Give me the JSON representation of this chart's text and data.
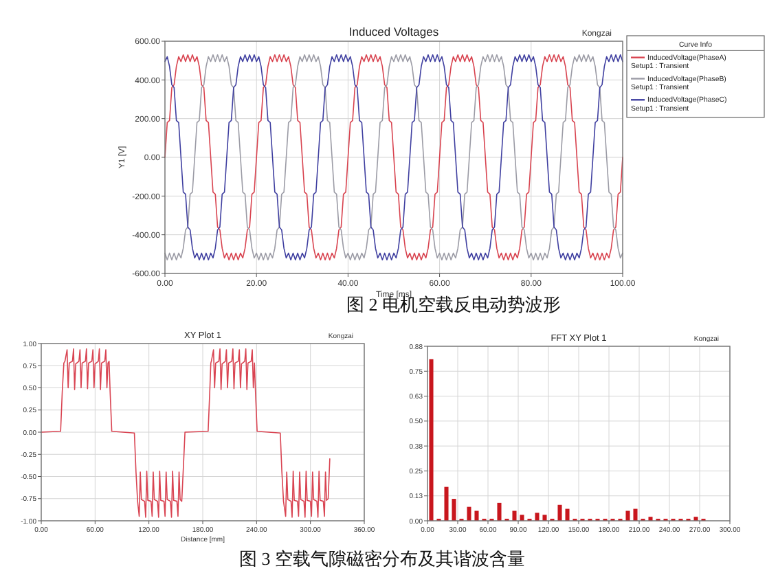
{
  "chart_data": [
    {
      "type": "line",
      "title": "Induced Voltages",
      "xlabel": "Time [ms]",
      "ylabel": "Y1 [V]",
      "legend_title": "Curve Info",
      "legend": "top right",
      "grid": true,
      "annotations": [
        "Kongzai",
        "图 2 电机空载反电动势波形"
      ],
      "xlim": [
        0,
        100
      ],
      "xticks": [
        {
          "value": 0,
          "label": "0.00"
        },
        {
          "value": 20,
          "label": "20.00"
        },
        {
          "value": 40,
          "label": "40.00"
        },
        {
          "value": 60,
          "label": "60.00"
        },
        {
          "value": 80,
          "label": "80.00"
        },
        {
          "value": 100,
          "label": "100.00"
        }
      ],
      "ylim": [
        -600,
        600
      ],
      "yticks": [
        {
          "value": -600,
          "label": "-600.00"
        },
        {
          "value": -400,
          "label": "-400.00"
        },
        {
          "value": -200,
          "label": "-200.00"
        },
        {
          "value": 0,
          "label": "0.00"
        },
        {
          "value": 200,
          "label": "200.00"
        },
        {
          "value": 400,
          "label": "400.00"
        },
        {
          "value": 600,
          "label": "600.00"
        }
      ],
      "x": [
        0,
        0.5,
        1,
        1.5,
        2,
        2.5,
        3,
        3.5,
        4,
        4.5,
        5,
        5.5,
        6,
        6.5,
        7,
        7.5,
        8,
        8.5,
        9,
        9.5,
        10,
        10.5,
        11,
        11.5,
        12,
        12.5,
        13,
        13.5,
        14,
        14.5,
        15,
        15.5,
        16,
        16.5,
        17,
        17.5,
        18,
        18.5,
        19,
        19.5,
        20,
        20.5,
        21,
        21.5,
        22,
        22.5,
        23,
        23.5,
        24,
        24.5,
        25,
        25.5,
        26,
        26.5,
        27,
        27.5,
        28,
        28.5,
        29,
        29.5,
        30,
        30.5,
        31,
        31.5,
        32,
        32.5,
        33,
        33.5,
        34,
        34.5,
        35,
        35.5,
        36,
        36.5,
        37,
        37.5,
        38,
        38.5,
        39,
        39.5,
        40,
        40.5,
        41,
        41.5,
        42,
        42.5,
        43,
        43.5,
        44,
        44.5,
        45,
        45.5,
        46,
        46.5,
        47,
        47.5,
        48,
        48.5,
        49,
        49.5,
        50,
        50.5,
        51,
        51.5,
        52,
        52.5,
        53,
        53.5,
        54,
        54.5,
        55,
        55.5,
        56,
        56.5,
        57,
        57.5,
        58,
        58.5,
        59,
        59.5,
        60,
        60.5,
        61,
        61.5,
        62,
        62.5,
        63,
        63.5,
        64,
        64.5,
        65,
        65.5,
        66,
        66.5,
        67,
        67.5,
        68,
        68.5,
        69,
        69.5,
        70,
        70.5,
        71,
        71.5,
        72,
        72.5,
        73,
        73.5,
        74,
        74.5,
        75,
        75.5,
        76,
        76.5,
        77,
        77.5,
        78,
        78.5,
        79,
        79.5,
        80,
        80.5,
        81,
        81.5,
        82,
        82.5,
        83,
        83.5,
        84,
        84.5,
        85,
        85.5,
        86,
        86.5,
        87,
        87.5,
        88,
        88.5,
        89,
        89.5,
        90,
        90.5,
        91,
        91.5,
        92,
        92.5,
        93,
        93.5,
        94,
        94.5,
        95,
        95.5,
        96,
        96.5,
        97,
        97.5,
        98,
        98.5,
        99,
        99.5,
        100
      ],
      "series": [
        {
          "name": "InducedVoltage(PhaseA) Setup1 : Transient",
          "color": "#d8434f",
          "values": [
            0,
            180,
            190,
            360,
            375,
            470,
            520,
            495,
            530,
            495,
            530,
            495,
            530,
            495,
            520,
            470,
            375,
            360,
            190,
            180,
            0,
            -180,
            -190,
            -360,
            -375,
            -470,
            -520,
            -495,
            -530,
            -495,
            -530,
            -495,
            -530,
            -495,
            -520,
            -470,
            -375,
            -360,
            -190,
            -180,
            0,
            180,
            190,
            360,
            375,
            470,
            520,
            495,
            530,
            495,
            530,
            495,
            530,
            495,
            520,
            470,
            375,
            360,
            190,
            180,
            0,
            -180,
            -190,
            -360,
            -375,
            -470,
            -520,
            -495,
            -530,
            -495,
            -530,
            -495,
            -530,
            -495,
            -520,
            -470,
            -375,
            -360,
            -190,
            -180,
            0,
            180,
            190,
            360,
            375,
            470,
            520,
            495,
            530,
            495,
            530,
            495,
            530,
            495,
            520,
            470,
            375,
            360,
            190,
            180,
            0,
            -180,
            -190,
            -360,
            -375,
            -470,
            -520,
            -495,
            -530,
            -495,
            -530,
            -495,
            -530,
            -495,
            -520,
            -470,
            -375,
            -360,
            -190,
            -180,
            0,
            180,
            190,
            360,
            375,
            470,
            520,
            495,
            530,
            495,
            530,
            495,
            530,
            495,
            520,
            470,
            375,
            360,
            190,
            180,
            0,
            -180,
            -190,
            -360,
            -375,
            -470,
            -520,
            -495,
            -530,
            -495,
            -530,
            -495,
            -530,
            -495,
            -520,
            -470,
            -375,
            -360,
            -190,
            -180,
            0,
            180,
            190,
            360,
            375,
            470,
            520,
            495,
            530,
            495,
            530,
            495,
            530,
            495,
            520,
            470,
            375,
            360,
            190,
            180,
            0,
            -180,
            -190,
            -360,
            -375,
            -470,
            -520,
            -495,
            -530,
            -495,
            -530,
            -495,
            -530,
            -495,
            -520,
            -470,
            -375,
            -360,
            -190,
            -180,
            0
          ]
        },
        {
          "name": "InducedVoltage(PhaseB) Setup1 : Transient",
          "color": "#9b9ba5",
          "values": [
            -495,
            -530,
            -495,
            -530,
            -495,
            -530,
            -495,
            -520,
            -470,
            -375,
            -360,
            -190,
            -180,
            0,
            180,
            190,
            360,
            375,
            470,
            520,
            495,
            530,
            495,
            530,
            495,
            530,
            495,
            520,
            470,
            375,
            360,
            190,
            180,
            0,
            -180,
            -190,
            -360,
            -375,
            -470,
            -520,
            -495,
            -530,
            -495,
            -530,
            -495,
            -530,
            -495,
            -520,
            -470,
            -375,
            -360,
            -190,
            -180,
            0,
            180,
            190,
            360,
            375,
            470,
            520,
            495,
            530,
            495,
            530,
            495,
            530,
            495,
            520,
            470,
            375,
            360,
            190,
            180,
            0,
            -180,
            -190,
            -360,
            -375,
            -470,
            -520,
            -495,
            -530,
            -495,
            -530,
            -495,
            -530,
            -495,
            -520,
            -470,
            -375,
            -360,
            -190,
            -180,
            0,
            180,
            190,
            360,
            375,
            470,
            520,
            495,
            530,
            495,
            530,
            495,
            530,
            495,
            520,
            470,
            375,
            360,
            190,
            180,
            0,
            -180,
            -190,
            -360,
            -375,
            -470,
            -520,
            -495,
            -530,
            -495,
            -530,
            -495,
            -530,
            -495,
            -520,
            -470,
            -375,
            -360,
            -190,
            -180,
            0,
            180,
            190,
            360,
            375,
            470,
            520,
            495,
            530,
            495,
            530,
            495,
            530,
            495,
            520,
            470,
            375,
            360,
            190,
            180,
            0,
            -180,
            -190,
            -360,
            -375,
            -470,
            -520,
            -495,
            -530,
            -495,
            -530,
            -495,
            -530,
            -495,
            -520,
            -470,
            -375,
            -360,
            -190,
            -180,
            0,
            180,
            190,
            360,
            375,
            470,
            520,
            495,
            530,
            495,
            530,
            495,
            530,
            495,
            520,
            470,
            375,
            360,
            190,
            180,
            0,
            -180,
            -190,
            -360,
            -375,
            -470,
            -520,
            -495
          ]
        },
        {
          "name": "InducedVoltage(PhaseC) Setup1 : Transient",
          "color": "#3f3fa0",
          "values": [
            495,
            520,
            470,
            375,
            360,
            190,
            180,
            0,
            -180,
            -190,
            -360,
            -375,
            -470,
            -520,
            -495,
            -530,
            -495,
            -530,
            -495,
            -530,
            -495,
            -520,
            -470,
            -375,
            -360,
            -190,
            -180,
            0,
            180,
            190,
            360,
            375,
            470,
            520,
            495,
            530,
            495,
            530,
            495,
            530,
            495,
            520,
            470,
            375,
            360,
            190,
            180,
            0,
            -180,
            -190,
            -360,
            -375,
            -470,
            -520,
            -495,
            -530,
            -495,
            -530,
            -495,
            -530,
            -495,
            -520,
            -470,
            -375,
            -360,
            -190,
            -180,
            0,
            180,
            190,
            360,
            375,
            470,
            520,
            495,
            530,
            495,
            530,
            495,
            530,
            495,
            520,
            470,
            375,
            360,
            190,
            180,
            0,
            -180,
            -190,
            -360,
            -375,
            -470,
            -520,
            -495,
            -530,
            -495,
            -530,
            -495,
            -530,
            -495,
            -520,
            -470,
            -375,
            -360,
            -190,
            -180,
            0,
            180,
            190,
            360,
            375,
            470,
            520,
            495,
            530,
            495,
            530,
            495,
            530,
            495,
            520,
            470,
            375,
            360,
            190,
            180,
            0,
            -180,
            -190,
            -360,
            -375,
            -470,
            -520,
            -495,
            -530,
            -495,
            -530,
            -495,
            -530,
            -495,
            -520,
            -470,
            -375,
            -360,
            -190,
            -180,
            0,
            180,
            190,
            360,
            375,
            470,
            520,
            495,
            530,
            495,
            530,
            495,
            530,
            495,
            520,
            470,
            375,
            360,
            190,
            180,
            0,
            -180,
            -190,
            -360,
            -375,
            -470,
            -520,
            -495,
            -530,
            -495,
            -530,
            -495,
            -530,
            -495,
            -520,
            -470,
            -375,
            -360,
            -190,
            -180,
            0,
            180,
            190,
            360,
            375,
            470,
            520,
            495,
            530,
            495,
            530,
            495,
            530,
            495
          ]
        }
      ]
    },
    {
      "type": "line",
      "title": "XY Plot 1",
      "xlabel": "Distance [mm]",
      "grid": true,
      "annotations": [
        "Kongzai",
        "图 3 空载气隙磁密分布及其谐波含量"
      ],
      "xlim": [
        0,
        360
      ],
      "xticks": [
        {
          "value": 0,
          "label": "0.00"
        },
        {
          "value": 60,
          "label": "60.00"
        },
        {
          "value": 120,
          "label": "120.00"
        },
        {
          "value": 180,
          "label": "180.00"
        },
        {
          "value": 240,
          "label": "240.00"
        },
        {
          "value": 300,
          "label": "300.00"
        },
        {
          "value": 360,
          "label": "360.00"
        }
      ],
      "ylim": [
        -1,
        1
      ],
      "yticks": [
        {
          "value": -1,
          "label": "-1.00"
        },
        {
          "value": -0.75,
          "label": "-0.75"
        },
        {
          "value": -0.5,
          "label": "-0.50"
        },
        {
          "value": -0.25,
          "label": "-0.25"
        },
        {
          "value": 0,
          "label": "0.00"
        },
        {
          "value": 0.25,
          "label": "0.25"
        },
        {
          "value": 0.5,
          "label": "0.50"
        },
        {
          "value": 0.75,
          "label": "0.75"
        },
        {
          "value": 1,
          "label": "1.00"
        }
      ],
      "x": [
        0,
        21.6,
        23.4,
        25.2,
        26.4,
        28.8,
        30,
        31.2,
        34.8,
        36,
        37.2,
        38.4,
        42,
        43.2,
        44.4,
        45.6,
        49.2,
        50.4,
        51.6,
        52.8,
        56.4,
        57.6,
        58.8,
        60,
        63.6,
        64.8,
        66,
        67.2,
        70.8,
        72,
        73.2,
        74.4,
        75.6,
        76.8,
        78.6,
        103.8,
        105.6,
        107.4,
        109.2,
        110.4,
        111.6,
        115.2,
        116.4,
        117.6,
        118.8,
        122.4,
        123.6,
        124.8,
        126,
        129.6,
        130.8,
        132,
        133.2,
        136.8,
        138,
        139.2,
        140.4,
        144,
        145.2,
        146.4,
        147.6,
        151.2,
        152.4,
        153.6,
        154.8,
        156.6,
        158.4,
        160.2,
        186,
        187.8,
        189,
        189.6,
        192,
        193.2,
        194.4,
        198,
        199.2,
        200.4,
        201.6,
        205.2,
        206.4,
        207.6,
        208.8,
        212.4,
        213.6,
        214.8,
        216,
        219.6,
        220.8,
        222,
        223.2,
        226.8,
        228,
        229.2,
        230.4,
        234,
        235.2,
        236.4,
        237.6,
        238.8,
        240.6,
        266.4,
        268.2,
        270,
        272.4,
        273.6,
        274.8,
        278.4,
        279.6,
        280.8,
        282,
        285.6,
        286.8,
        288,
        289.2,
        292.8,
        294,
        295.2,
        296.4,
        300,
        301.2,
        302.4,
        303.6,
        307.2,
        308.4,
        309.6,
        310.8,
        314.4,
        315.6,
        316.8,
        318,
        319.8,
        321.6
      ],
      "series": [
        {
          "color": "#d94452",
          "values": [
            0,
            0.01,
            0.45,
            0.78,
            0.8,
            0.93,
            0.5,
            0.78,
            0.8,
            0.94,
            0.48,
            0.77,
            0.8,
            0.93,
            0.5,
            0.78,
            0.8,
            0.94,
            0.49,
            0.78,
            0.8,
            0.93,
            0.5,
            0.77,
            0.8,
            0.94,
            0.48,
            0.78,
            0.8,
            0.93,
            0.5,
            0.78,
            0.8,
            0.45,
            0.01,
            -0.01,
            -0.45,
            -0.78,
            -0.95,
            -0.45,
            -0.76,
            -0.78,
            -0.96,
            -0.44,
            -0.77,
            -0.78,
            -0.95,
            -0.45,
            -0.76,
            -0.78,
            -0.96,
            -0.44,
            -0.77,
            -0.78,
            -0.95,
            -0.45,
            -0.76,
            -0.78,
            -0.96,
            -0.44,
            -0.77,
            -0.78,
            -0.95,
            -0.45,
            -0.76,
            -0.78,
            -0.4,
            0,
            0.01,
            0.45,
            0.78,
            0.8,
            0.93,
            0.5,
            0.78,
            0.8,
            0.94,
            0.48,
            0.77,
            0.8,
            0.93,
            0.5,
            0.78,
            0.8,
            0.94,
            0.49,
            0.78,
            0.8,
            0.93,
            0.5,
            0.77,
            0.8,
            0.94,
            0.48,
            0.78,
            0.8,
            0.93,
            0.5,
            0.78,
            0.45,
            0.01,
            -0.01,
            -0.45,
            -0.78,
            -0.95,
            -0.45,
            -0.76,
            -0.78,
            -0.96,
            -0.44,
            -0.77,
            -0.78,
            -0.95,
            -0.45,
            -0.76,
            -0.78,
            -0.96,
            -0.44,
            -0.77,
            -0.78,
            -0.95,
            -0.45,
            -0.76,
            -0.78,
            -0.96,
            -0.44,
            -0.77,
            -0.78,
            -0.95,
            -0.45,
            -0.77,
            -0.75,
            -0.3
          ]
        }
      ]
    },
    {
      "type": "bar",
      "title": "FFT XY Plot 1",
      "grid": true,
      "annotations": [
        "Kongzai"
      ],
      "xlim": [
        0,
        300
      ],
      "xticks": [
        {
          "value": 0,
          "label": "0.00"
        },
        {
          "value": 30,
          "label": "30.00"
        },
        {
          "value": 60,
          "label": "60.00"
        },
        {
          "value": 90,
          "label": "90.00"
        },
        {
          "value": 120,
          "label": "120.00"
        },
        {
          "value": 150,
          "label": "150.00"
        },
        {
          "value": 180,
          "label": "180.00"
        },
        {
          "value": 210,
          "label": "210.00"
        },
        {
          "value": 240,
          "label": "240.00"
        },
        {
          "value": 270,
          "label": "270.00"
        },
        {
          "value": 300,
          "label": "300.00"
        }
      ],
      "ylim": [
        0,
        0.875
      ],
      "yticks": [
        {
          "value": 0,
          "label": "0.00"
        },
        {
          "value": 0.125,
          "label": "0.13"
        },
        {
          "value": 0.25,
          "label": "0.25"
        },
        {
          "value": 0.375,
          "label": "0.38"
        },
        {
          "value": 0.5,
          "label": "0.50"
        },
        {
          "value": 0.625,
          "label": "0.63"
        },
        {
          "value": 0.75,
          "label": "0.75"
        },
        {
          "value": 0.875,
          "label": "0.88"
        }
      ],
      "x": [
        3.75,
        11.25,
        18.75,
        26.25,
        33.75,
        41.25,
        48.75,
        56.25,
        63.75,
        71.25,
        78.75,
        86.25,
        93.75,
        101.25,
        108.75,
        116.25,
        123.75,
        131.25,
        138.75,
        146.25,
        153.75,
        161.25,
        168.75,
        176.25,
        183.75,
        191.25,
        198.75,
        206.25,
        213.75,
        221.25,
        228.75,
        236.25,
        243.75,
        251.25,
        258.75,
        266.25,
        273.75
      ],
      "color": "#c8161d",
      "values": [
        0.81,
        0.01,
        0.17,
        0.11,
        0.01,
        0.07,
        0.05,
        0.01,
        0.01,
        0.09,
        0.01,
        0.05,
        0.03,
        0.01,
        0.04,
        0.03,
        0.01,
        0.08,
        0.06,
        0.01,
        0.01,
        0.01,
        0.01,
        0.01,
        0.01,
        0.01,
        0.05,
        0.06,
        0.01,
        0.02,
        0.01,
        0.01,
        0.01,
        0.01,
        0.01,
        0.02,
        0.01
      ]
    }
  ]
}
